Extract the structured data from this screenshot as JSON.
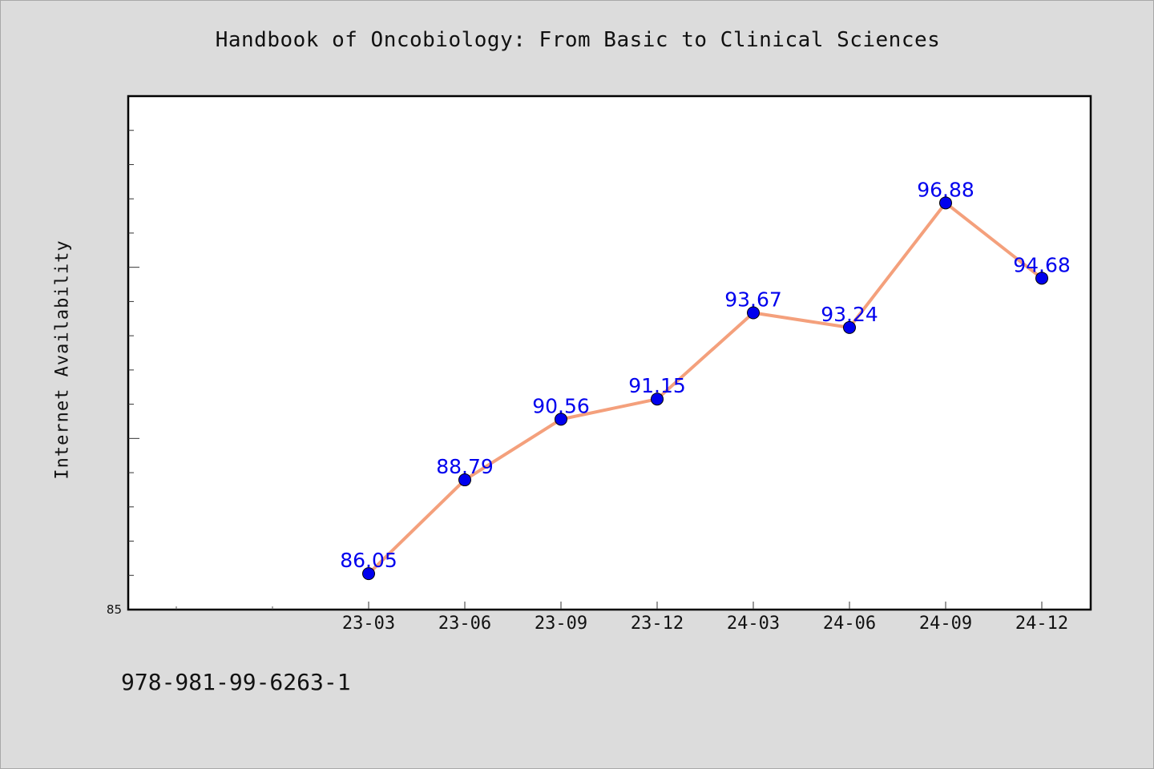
{
  "chart_data": {
    "type": "line",
    "title": "Handbook of Oncobiology: From Basic to Clinical Sciences",
    "xlabel": "",
    "ylabel": "Internet Availability",
    "categories": [
      "23-03",
      "23-06",
      "23-09",
      "23-12",
      "24-03",
      "24-06",
      "24-09",
      "24-12"
    ],
    "series": [
      {
        "values": [
          86.05,
          88.79,
          90.56,
          91.15,
          93.67,
          93.24,
          96.88,
          94.68
        ]
      }
    ],
    "data_labels": [
      "86.05",
      "88.79",
      "90.56",
      "91.15",
      "93.67",
      "93.24",
      "96.88",
      "94.68"
    ],
    "ylim": [
      85,
      100
    ],
    "y_tick_labels": [
      "85"
    ],
    "grid": false,
    "line_color": "#f4a07c",
    "marker_color": "#0000ee",
    "label_color": "#0000ee"
  },
  "footer": {
    "isbn": "978-981-99-6263-1"
  }
}
